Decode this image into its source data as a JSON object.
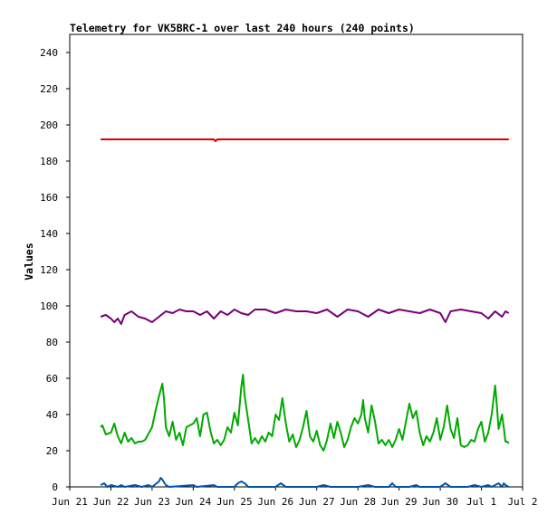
{
  "chart_data": {
    "type": "line",
    "title": "Telemetry for VK5BRC-1 over last 240 hours (240 points)",
    "xlabel": "",
    "ylabel": "Values",
    "ylim": [
      0,
      250
    ],
    "yticks": [
      0,
      20,
      40,
      60,
      80,
      100,
      120,
      140,
      160,
      180,
      200,
      220,
      240
    ],
    "xlim": [
      "2024-06-21T00:00",
      "2024-07-02T00:00"
    ],
    "xticks": [
      {
        "x": "2024-06-21T00:00",
        "label": "Jun 21"
      },
      {
        "x": "2024-06-22T00:00",
        "label": "Jun 22"
      },
      {
        "x": "2024-06-23T00:00",
        "label": "Jun 23"
      },
      {
        "x": "2024-06-24T00:00",
        "label": "Jun 24"
      },
      {
        "x": "2024-06-25T00:00",
        "label": "Jun 25"
      },
      {
        "x": "2024-06-26T00:00",
        "label": "Jun 26"
      },
      {
        "x": "2024-06-27T00:00",
        "label": "Jun 27"
      },
      {
        "x": "2024-06-28T00:00",
        "label": "Jun 28"
      },
      {
        "x": "2024-06-29T00:00",
        "label": "Jun 29"
      },
      {
        "x": "2024-06-30T00:00",
        "label": "Jun 30"
      },
      {
        "x": "2024-07-01T00:00",
        "label": "Jul 1"
      },
      {
        "x": "2024-07-02T00:00",
        "label": "Jul 2"
      }
    ],
    "grid": false,
    "series": [
      {
        "color": "#dd0000",
        "points": [
          [
            "2024-06-21T18:00",
            192
          ],
          [
            "2024-06-22T18:00",
            192
          ],
          [
            "2024-06-23T18:00",
            192
          ],
          [
            "2024-06-24T12:00",
            192
          ],
          [
            "2024-06-24T13:00",
            191
          ],
          [
            "2024-06-24T14:00",
            192
          ],
          [
            "2024-06-25T18:00",
            192
          ],
          [
            "2024-06-26T18:00",
            192
          ],
          [
            "2024-06-27T18:00",
            192
          ],
          [
            "2024-06-28T18:00",
            192
          ],
          [
            "2024-06-29T18:00",
            192
          ],
          [
            "2024-06-30T18:00",
            192
          ],
          [
            "2024-07-01T16:00",
            192
          ]
        ]
      },
      {
        "color": "#770077",
        "points": [
          [
            "2024-06-21T18:00",
            94
          ],
          [
            "2024-06-21T21:00",
            95
          ],
          [
            "2024-06-22T00:00",
            93
          ],
          [
            "2024-06-22T02:00",
            91
          ],
          [
            "2024-06-22T04:00",
            93
          ],
          [
            "2024-06-22T06:00",
            90
          ],
          [
            "2024-06-22T08:00",
            95
          ],
          [
            "2024-06-22T12:00",
            97
          ],
          [
            "2024-06-22T16:00",
            94
          ],
          [
            "2024-06-22T20:00",
            93
          ],
          [
            "2024-06-23T00:00",
            91
          ],
          [
            "2024-06-23T04:00",
            94
          ],
          [
            "2024-06-23T08:00",
            97
          ],
          [
            "2024-06-23T12:00",
            96
          ],
          [
            "2024-06-23T16:00",
            98
          ],
          [
            "2024-06-23T20:00",
            97
          ],
          [
            "2024-06-24T00:00",
            97
          ],
          [
            "2024-06-24T04:00",
            95
          ],
          [
            "2024-06-24T08:00",
            97
          ],
          [
            "2024-06-24T12:00",
            93
          ],
          [
            "2024-06-24T16:00",
            97
          ],
          [
            "2024-06-24T20:00",
            95
          ],
          [
            "2024-06-25T00:00",
            98
          ],
          [
            "2024-06-25T04:00",
            96
          ],
          [
            "2024-06-25T08:00",
            95
          ],
          [
            "2024-06-25T12:00",
            98
          ],
          [
            "2024-06-25T18:00",
            98
          ],
          [
            "2024-06-26T00:00",
            96
          ],
          [
            "2024-06-26T06:00",
            98
          ],
          [
            "2024-06-26T12:00",
            97
          ],
          [
            "2024-06-26T18:00",
            97
          ],
          [
            "2024-06-27T00:00",
            96
          ],
          [
            "2024-06-27T06:00",
            98
          ],
          [
            "2024-06-27T12:00",
            94
          ],
          [
            "2024-06-27T18:00",
            98
          ],
          [
            "2024-06-28T00:00",
            97
          ],
          [
            "2024-06-28T06:00",
            94
          ],
          [
            "2024-06-28T12:00",
            98
          ],
          [
            "2024-06-28T18:00",
            96
          ],
          [
            "2024-06-29T00:00",
            98
          ],
          [
            "2024-06-29T06:00",
            97
          ],
          [
            "2024-06-29T12:00",
            96
          ],
          [
            "2024-06-29T18:00",
            98
          ],
          [
            "2024-06-30T00:00",
            96
          ],
          [
            "2024-06-30T03:00",
            91
          ],
          [
            "2024-06-30T06:00",
            97
          ],
          [
            "2024-06-30T12:00",
            98
          ],
          [
            "2024-06-30T18:00",
            97
          ],
          [
            "2024-07-01T00:00",
            96
          ],
          [
            "2024-07-01T04:00",
            93
          ],
          [
            "2024-07-01T08:00",
            97
          ],
          [
            "2024-07-01T12:00",
            94
          ],
          [
            "2024-07-01T14:00",
            97
          ],
          [
            "2024-07-01T16:00",
            96
          ]
        ]
      },
      {
        "color": "#00aa00",
        "points": [
          [
            "2024-06-21T18:00",
            33
          ],
          [
            "2024-06-21T19:00",
            34
          ],
          [
            "2024-06-21T21:00",
            29
          ],
          [
            "2024-06-22T00:00",
            30
          ],
          [
            "2024-06-22T02:00",
            35
          ],
          [
            "2024-06-22T04:00",
            28
          ],
          [
            "2024-06-22T06:00",
            24
          ],
          [
            "2024-06-22T08:00",
            30
          ],
          [
            "2024-06-22T10:00",
            25
          ],
          [
            "2024-06-22T12:00",
            27
          ],
          [
            "2024-06-22T14:00",
            24
          ],
          [
            "2024-06-22T16:00",
            25
          ],
          [
            "2024-06-22T18:00",
            25
          ],
          [
            "2024-06-22T20:00",
            26
          ],
          [
            "2024-06-23T00:00",
            33
          ],
          [
            "2024-06-23T02:00",
            42
          ],
          [
            "2024-06-23T04:00",
            50
          ],
          [
            "2024-06-23T06:00",
            57
          ],
          [
            "2024-06-23T07:00",
            48
          ],
          [
            "2024-06-23T08:00",
            33
          ],
          [
            "2024-06-23T10:00",
            28
          ],
          [
            "2024-06-23T12:00",
            36
          ],
          [
            "2024-06-23T14:00",
            26
          ],
          [
            "2024-06-23T16:00",
            30
          ],
          [
            "2024-06-23T18:00",
            23
          ],
          [
            "2024-06-23T20:00",
            33
          ],
          [
            "2024-06-24T00:00",
            35
          ],
          [
            "2024-06-24T02:00",
            38
          ],
          [
            "2024-06-24T04:00",
            28
          ],
          [
            "2024-06-24T06:00",
            40
          ],
          [
            "2024-06-24T08:00",
            41
          ],
          [
            "2024-06-24T10:00",
            31
          ],
          [
            "2024-06-24T12:00",
            24
          ],
          [
            "2024-06-24T14:00",
            26
          ],
          [
            "2024-06-24T16:00",
            23
          ],
          [
            "2024-06-24T18:00",
            26
          ],
          [
            "2024-06-24T20:00",
            33
          ],
          [
            "2024-06-24T22:00",
            30
          ],
          [
            "2024-06-25T00:00",
            41
          ],
          [
            "2024-06-25T02:00",
            34
          ],
          [
            "2024-06-25T04:00",
            55
          ],
          [
            "2024-06-25T05:00",
            62
          ],
          [
            "2024-06-25T06:00",
            50
          ],
          [
            "2024-06-25T08:00",
            37
          ],
          [
            "2024-06-25T10:00",
            24
          ],
          [
            "2024-06-25T12:00",
            27
          ],
          [
            "2024-06-25T14:00",
            24
          ],
          [
            "2024-06-25T16:00",
            28
          ],
          [
            "2024-06-25T18:00",
            25
          ],
          [
            "2024-06-25T20:00",
            30
          ],
          [
            "2024-06-25T22:00",
            28
          ],
          [
            "2024-06-26T00:00",
            40
          ],
          [
            "2024-06-26T02:00",
            37
          ],
          [
            "2024-06-26T04:00",
            49
          ],
          [
            "2024-06-26T06:00",
            35
          ],
          [
            "2024-06-26T08:00",
            25
          ],
          [
            "2024-06-26T10:00",
            29
          ],
          [
            "2024-06-26T12:00",
            22
          ],
          [
            "2024-06-26T14:00",
            26
          ],
          [
            "2024-06-26T16:00",
            33
          ],
          [
            "2024-06-26T18:00",
            42
          ],
          [
            "2024-06-26T20:00",
            28
          ],
          [
            "2024-06-26T22:00",
            25
          ],
          [
            "2024-06-27T00:00",
            31
          ],
          [
            "2024-06-27T02:00",
            23
          ],
          [
            "2024-06-27T04:00",
            20
          ],
          [
            "2024-06-27T06:00",
            26
          ],
          [
            "2024-06-27T08:00",
            35
          ],
          [
            "2024-06-27T10:00",
            27
          ],
          [
            "2024-06-27T12:00",
            36
          ],
          [
            "2024-06-27T14:00",
            30
          ],
          [
            "2024-06-27T16:00",
            22
          ],
          [
            "2024-06-27T18:00",
            26
          ],
          [
            "2024-06-27T20:00",
            33
          ],
          [
            "2024-06-27T22:00",
            38
          ],
          [
            "2024-06-28T00:00",
            35
          ],
          [
            "2024-06-28T02:00",
            40
          ],
          [
            "2024-06-28T03:00",
            48
          ],
          [
            "2024-06-28T04:00",
            38
          ],
          [
            "2024-06-28T06:00",
            30
          ],
          [
            "2024-06-28T08:00",
            45
          ],
          [
            "2024-06-28T10:00",
            36
          ],
          [
            "2024-06-28T12:00",
            24
          ],
          [
            "2024-06-28T14:00",
            26
          ],
          [
            "2024-06-28T16:00",
            23
          ],
          [
            "2024-06-28T18:00",
            26
          ],
          [
            "2024-06-28T20:00",
            22
          ],
          [
            "2024-06-28T22:00",
            26
          ],
          [
            "2024-06-29T00:00",
            32
          ],
          [
            "2024-06-29T02:00",
            26
          ],
          [
            "2024-06-29T04:00",
            36
          ],
          [
            "2024-06-29T06:00",
            46
          ],
          [
            "2024-06-29T08:00",
            38
          ],
          [
            "2024-06-29T10:00",
            42
          ],
          [
            "2024-06-29T12:00",
            30
          ],
          [
            "2024-06-29T14:00",
            23
          ],
          [
            "2024-06-29T16:00",
            28
          ],
          [
            "2024-06-29T18:00",
            25
          ],
          [
            "2024-06-29T20:00",
            30
          ],
          [
            "2024-06-29T22:00",
            38
          ],
          [
            "2024-06-30T00:00",
            26
          ],
          [
            "2024-06-30T02:00",
            33
          ],
          [
            "2024-06-30T04:00",
            45
          ],
          [
            "2024-06-30T06:00",
            32
          ],
          [
            "2024-06-30T08:00",
            27
          ],
          [
            "2024-06-30T10:00",
            38
          ],
          [
            "2024-06-30T12:00",
            23
          ],
          [
            "2024-06-30T14:00",
            22
          ],
          [
            "2024-06-30T16:00",
            23
          ],
          [
            "2024-06-30T18:00",
            26
          ],
          [
            "2024-06-30T20:00",
            25
          ],
          [
            "2024-06-30T22:00",
            32
          ],
          [
            "2024-07-01T00:00",
            36
          ],
          [
            "2024-07-01T02:00",
            25
          ],
          [
            "2024-07-01T04:00",
            30
          ],
          [
            "2024-07-01T06:00",
            40
          ],
          [
            "2024-07-01T08:00",
            56
          ],
          [
            "2024-07-01T09:00",
            45
          ],
          [
            "2024-07-01T10:00",
            32
          ],
          [
            "2024-07-01T12:00",
            40
          ],
          [
            "2024-07-01T13:00",
            33
          ],
          [
            "2024-07-01T14:00",
            25
          ],
          [
            "2024-07-01T15:00",
            25
          ],
          [
            "2024-07-01T16:00",
            24
          ]
        ]
      },
      {
        "color": "#0055aa",
        "points": [
          [
            "2024-06-21T18:00",
            1
          ],
          [
            "2024-06-21T20:00",
            2
          ],
          [
            "2024-06-21T22:00",
            0
          ],
          [
            "2024-06-22T00:00",
            1
          ],
          [
            "2024-06-22T04:00",
            0
          ],
          [
            "2024-06-22T06:00",
            1
          ],
          [
            "2024-06-22T08:00",
            0
          ],
          [
            "2024-06-22T14:00",
            1
          ],
          [
            "2024-06-22T18:00",
            0
          ],
          [
            "2024-06-22T22:00",
            1
          ],
          [
            "2024-06-23T00:00",
            0
          ],
          [
            "2024-06-23T04:00",
            3
          ],
          [
            "2024-06-23T05:00",
            5
          ],
          [
            "2024-06-23T06:00",
            4
          ],
          [
            "2024-06-23T08:00",
            1
          ],
          [
            "2024-06-23T10:00",
            0
          ],
          [
            "2024-06-24T00:00",
            1
          ],
          [
            "2024-06-24T02:00",
            0
          ],
          [
            "2024-06-24T12:00",
            1
          ],
          [
            "2024-06-24T14:00",
            0
          ],
          [
            "2024-06-25T00:00",
            0
          ],
          [
            "2024-06-25T02:00",
            2
          ],
          [
            "2024-06-25T04:00",
            3
          ],
          [
            "2024-06-25T06:00",
            2
          ],
          [
            "2024-06-25T08:00",
            0
          ],
          [
            "2024-06-26T00:00",
            0
          ],
          [
            "2024-06-26T03:00",
            2
          ],
          [
            "2024-06-26T06:00",
            0
          ],
          [
            "2024-06-27T00:00",
            0
          ],
          [
            "2024-06-27T04:00",
            1
          ],
          [
            "2024-06-27T08:00",
            0
          ],
          [
            "2024-06-28T00:00",
            0
          ],
          [
            "2024-06-28T06:00",
            1
          ],
          [
            "2024-06-28T10:00",
            0
          ],
          [
            "2024-06-28T18:00",
            0
          ],
          [
            "2024-06-28T20:00",
            2
          ],
          [
            "2024-06-28T22:00",
            0
          ],
          [
            "2024-06-29T06:00",
            0
          ],
          [
            "2024-06-29T10:00",
            1
          ],
          [
            "2024-06-29T12:00",
            0
          ],
          [
            "2024-06-30T00:00",
            0
          ],
          [
            "2024-06-30T03:00",
            2
          ],
          [
            "2024-06-30T06:00",
            0
          ],
          [
            "2024-06-30T16:00",
            0
          ],
          [
            "2024-06-30T20:00",
            1
          ],
          [
            "2024-07-01T00:00",
            0
          ],
          [
            "2024-07-01T04:00",
            1
          ],
          [
            "2024-07-01T06:00",
            0
          ],
          [
            "2024-07-01T08:00",
            1
          ],
          [
            "2024-07-01T10:00",
            2
          ],
          [
            "2024-07-01T12:00",
            0
          ],
          [
            "2024-07-01T13:00",
            2
          ],
          [
            "2024-07-01T14:00",
            1
          ],
          [
            "2024-07-01T16:00",
            0
          ]
        ]
      }
    ]
  }
}
